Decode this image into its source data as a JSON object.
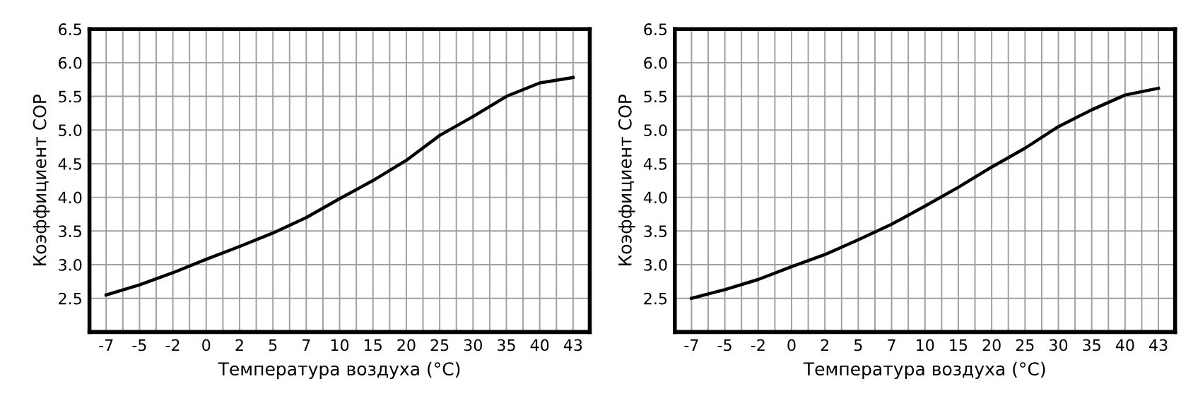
{
  "chart_data": [
    {
      "type": "line",
      "xlabel": "Температура воздуха (°С)",
      "ylabel": "Коэффициент COP",
      "categories": [
        "-7",
        "-5",
        "-2",
        "0",
        "2",
        "5",
        "7",
        "10",
        "15",
        "20",
        "25",
        "30",
        "35",
        "40",
        "43"
      ],
      "series": [
        {
          "color": "#000000",
          "values": [
            2.55,
            2.7,
            2.88,
            3.08,
            3.27,
            3.47,
            3.7,
            3.98,
            4.25,
            4.55,
            4.92,
            5.2,
            5.5,
            5.7,
            5.78
          ]
        }
      ],
      "ylim": [
        2.0,
        6.5
      ],
      "yticks": [
        {
          "value": 2.0,
          "label": null
        },
        2.5,
        {
          "value": 3,
          "label": "3.0"
        },
        3.5,
        {
          "value": 4,
          "label": "4.0"
        },
        4.5,
        {
          "value": 5,
          "label": "5.0"
        },
        5.5,
        {
          "value": 6,
          "label": "6.0"
        },
        6.5
      ],
      "grid": true,
      "marker": "none",
      "line_style": "solid"
    },
    {
      "type": "line",
      "xlabel": "Температура воздуха (°С)",
      "ylabel": "Коэффициент COP",
      "categories": [
        "-7",
        "-5",
        "-2",
        "0",
        "2",
        "5",
        "7",
        "10",
        "15",
        "20",
        "25",
        "30",
        "35",
        "40",
        "43"
      ],
      "series": [
        {
          "color": "#000000",
          "values": [
            2.5,
            2.63,
            2.78,
            2.97,
            3.15,
            3.37,
            3.6,
            3.87,
            4.15,
            4.45,
            4.73,
            5.05,
            5.3,
            5.52,
            5.62
          ]
        }
      ],
      "ylim": [
        2.0,
        6.5
      ],
      "yticks": [
        {
          "value": 2.0,
          "label": null
        },
        2.5,
        {
          "value": 3,
          "label": "3.0"
        },
        3.5,
        {
          "value": 4,
          "label": "4.0"
        },
        4.5,
        {
          "value": 5,
          "label": "5.0"
        },
        5.5,
        {
          "value": 6,
          "label": "6.0"
        },
        6.5
      ],
      "grid": true,
      "marker": "none",
      "line_style": "solid"
    }
  ]
}
